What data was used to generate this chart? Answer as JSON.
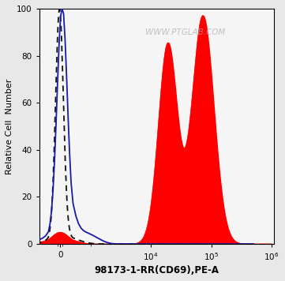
{
  "title": "",
  "xlabel": "98173-1-RR(CD69),PE-A",
  "ylabel": "Relative Cell  Number",
  "watermark": "WWW.PTGLAB.COM",
  "ylim": [
    0,
    100
  ],
  "yticks": [
    0,
    20,
    40,
    60,
    80,
    100
  ],
  "bg_color": "#e8e8e8",
  "plot_bg_color": "#f5f5f5",
  "dashed_color": "#111111",
  "blue_color": "#1a1aaa",
  "red_color": "#ff0000",
  "linthresh": 500,
  "linscale": 0.18
}
